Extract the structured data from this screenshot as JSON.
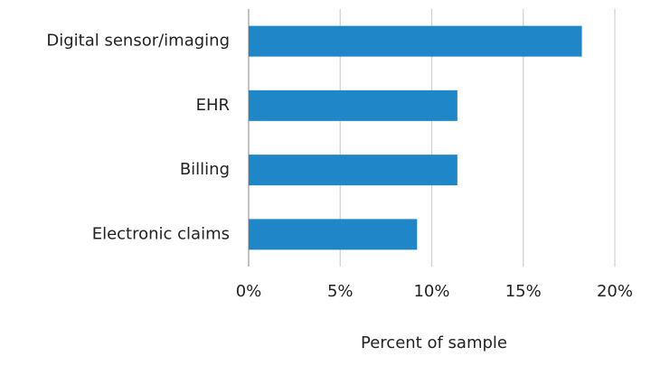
{
  "chart_data": {
    "type": "barh",
    "categories": [
      "Digital sensor/imaging",
      "EHR",
      "Billing",
      "Electronic claims"
    ],
    "values": [
      18.2,
      11.4,
      11.4,
      9.2
    ],
    "color": "#1f87c8",
    "xlabel": "Percent of sample",
    "xlim": [
      0,
      20
    ],
    "xticks": [
      {
        "value": 0,
        "label": "0%"
      },
      {
        "value": 5,
        "label": "5%"
      },
      {
        "value": 10,
        "label": "10%"
      },
      {
        "value": 15,
        "label": "15%"
      },
      {
        "value": 20,
        "label": "20%"
      }
    ],
    "grid": true
  }
}
